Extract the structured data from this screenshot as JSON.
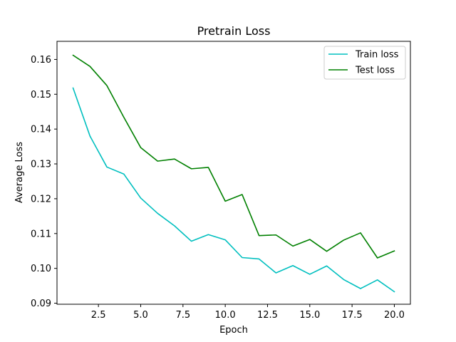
{
  "chart_data": {
    "type": "line",
    "title": "Pretrain Loss",
    "xlabel": "Epoch",
    "ylabel": "Average Loss",
    "xlim": [
      0.05,
      20.95
    ],
    "ylim": [
      0.0897,
      0.1652
    ],
    "x_ticks": [
      2.5,
      5.0,
      7.5,
      10.0,
      12.5,
      15.0,
      17.5,
      20.0
    ],
    "x_tick_labels": [
      "2.5",
      "5.0",
      "7.5",
      "10.0",
      "12.5",
      "15.0",
      "17.5",
      "20.0"
    ],
    "y_ticks": [
      0.09,
      0.1,
      0.11,
      0.12,
      0.13,
      0.14,
      0.15,
      0.16
    ],
    "y_tick_labels": [
      "0.09",
      "0.10",
      "0.11",
      "0.12",
      "0.13",
      "0.14",
      "0.15",
      "0.16"
    ],
    "grid": false,
    "legend_position": "top-right",
    "x": [
      1,
      2,
      3,
      4,
      5,
      6,
      7,
      8,
      9,
      10,
      11,
      12,
      13,
      14,
      15,
      16,
      17,
      18,
      19,
      20
    ],
    "series": [
      {
        "name": "Train loss",
        "color": "#00bfbf",
        "values": [
          0.1518,
          0.138,
          0.1291,
          0.1271,
          0.1202,
          0.1158,
          0.1122,
          0.1078,
          0.1097,
          0.1082,
          0.1031,
          0.1027,
          0.0987,
          0.1008,
          0.0983,
          0.1007,
          0.0968,
          0.0942,
          0.0967,
          0.0933
        ]
      },
      {
        "name": "Test loss",
        "color": "#008000",
        "values": [
          0.1612,
          0.158,
          0.1525,
          0.1434,
          0.1347,
          0.1308,
          0.1314,
          0.1286,
          0.129,
          0.1193,
          0.1212,
          0.1094,
          0.1096,
          0.1064,
          0.1083,
          0.1049,
          0.1081,
          0.1102,
          0.103,
          0.105
        ]
      }
    ]
  }
}
